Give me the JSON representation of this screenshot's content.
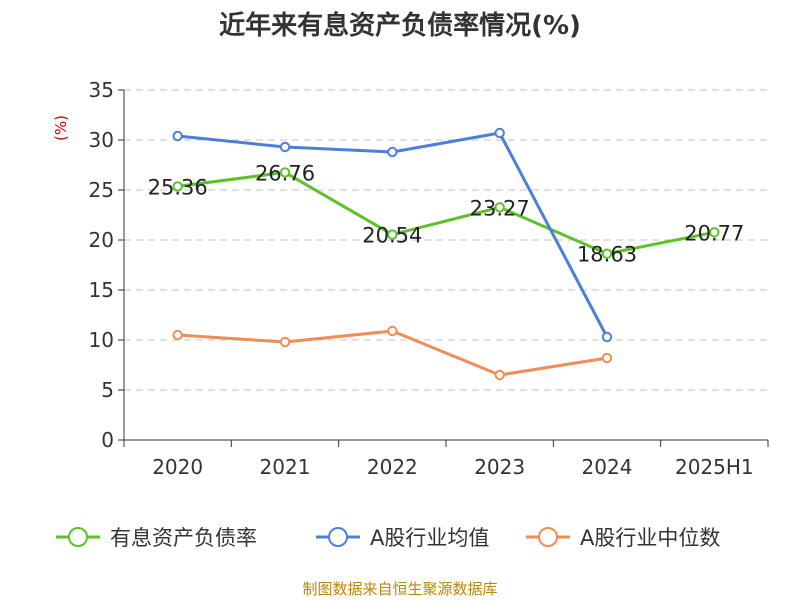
{
  "chart_data": {
    "type": "line",
    "title": "近年来有息资产负债率情况(%)",
    "ylabel": "(%)",
    "xlabel": "",
    "categories": [
      "2020",
      "2021",
      "2022",
      "2023",
      "2024",
      "2025H1"
    ],
    "ylim": [
      0,
      35
    ],
    "yticks": [
      0,
      5,
      10,
      15,
      20,
      25,
      30,
      35
    ],
    "grid": true,
    "legend_position": "bottom",
    "series": [
      {
        "name": "有息资产负债率",
        "color": "#5ec128",
        "values": [
          25.36,
          26.76,
          20.54,
          23.27,
          18.63,
          20.77
        ],
        "labels": [
          "25.36",
          "26.76",
          "20.54",
          "23.27",
          "18.63",
          "20.77"
        ]
      },
      {
        "name": "A股行业均值",
        "color": "#4b80d6",
        "values": [
          30.4,
          29.3,
          28.8,
          30.7,
          10.3,
          null
        ]
      },
      {
        "name": "A股行业中位数",
        "color": "#f28c56",
        "values": [
          10.5,
          9.8,
          10.9,
          6.5,
          8.2,
          null
        ]
      }
    ],
    "source": "制图数据来自恒生聚源数据库"
  }
}
